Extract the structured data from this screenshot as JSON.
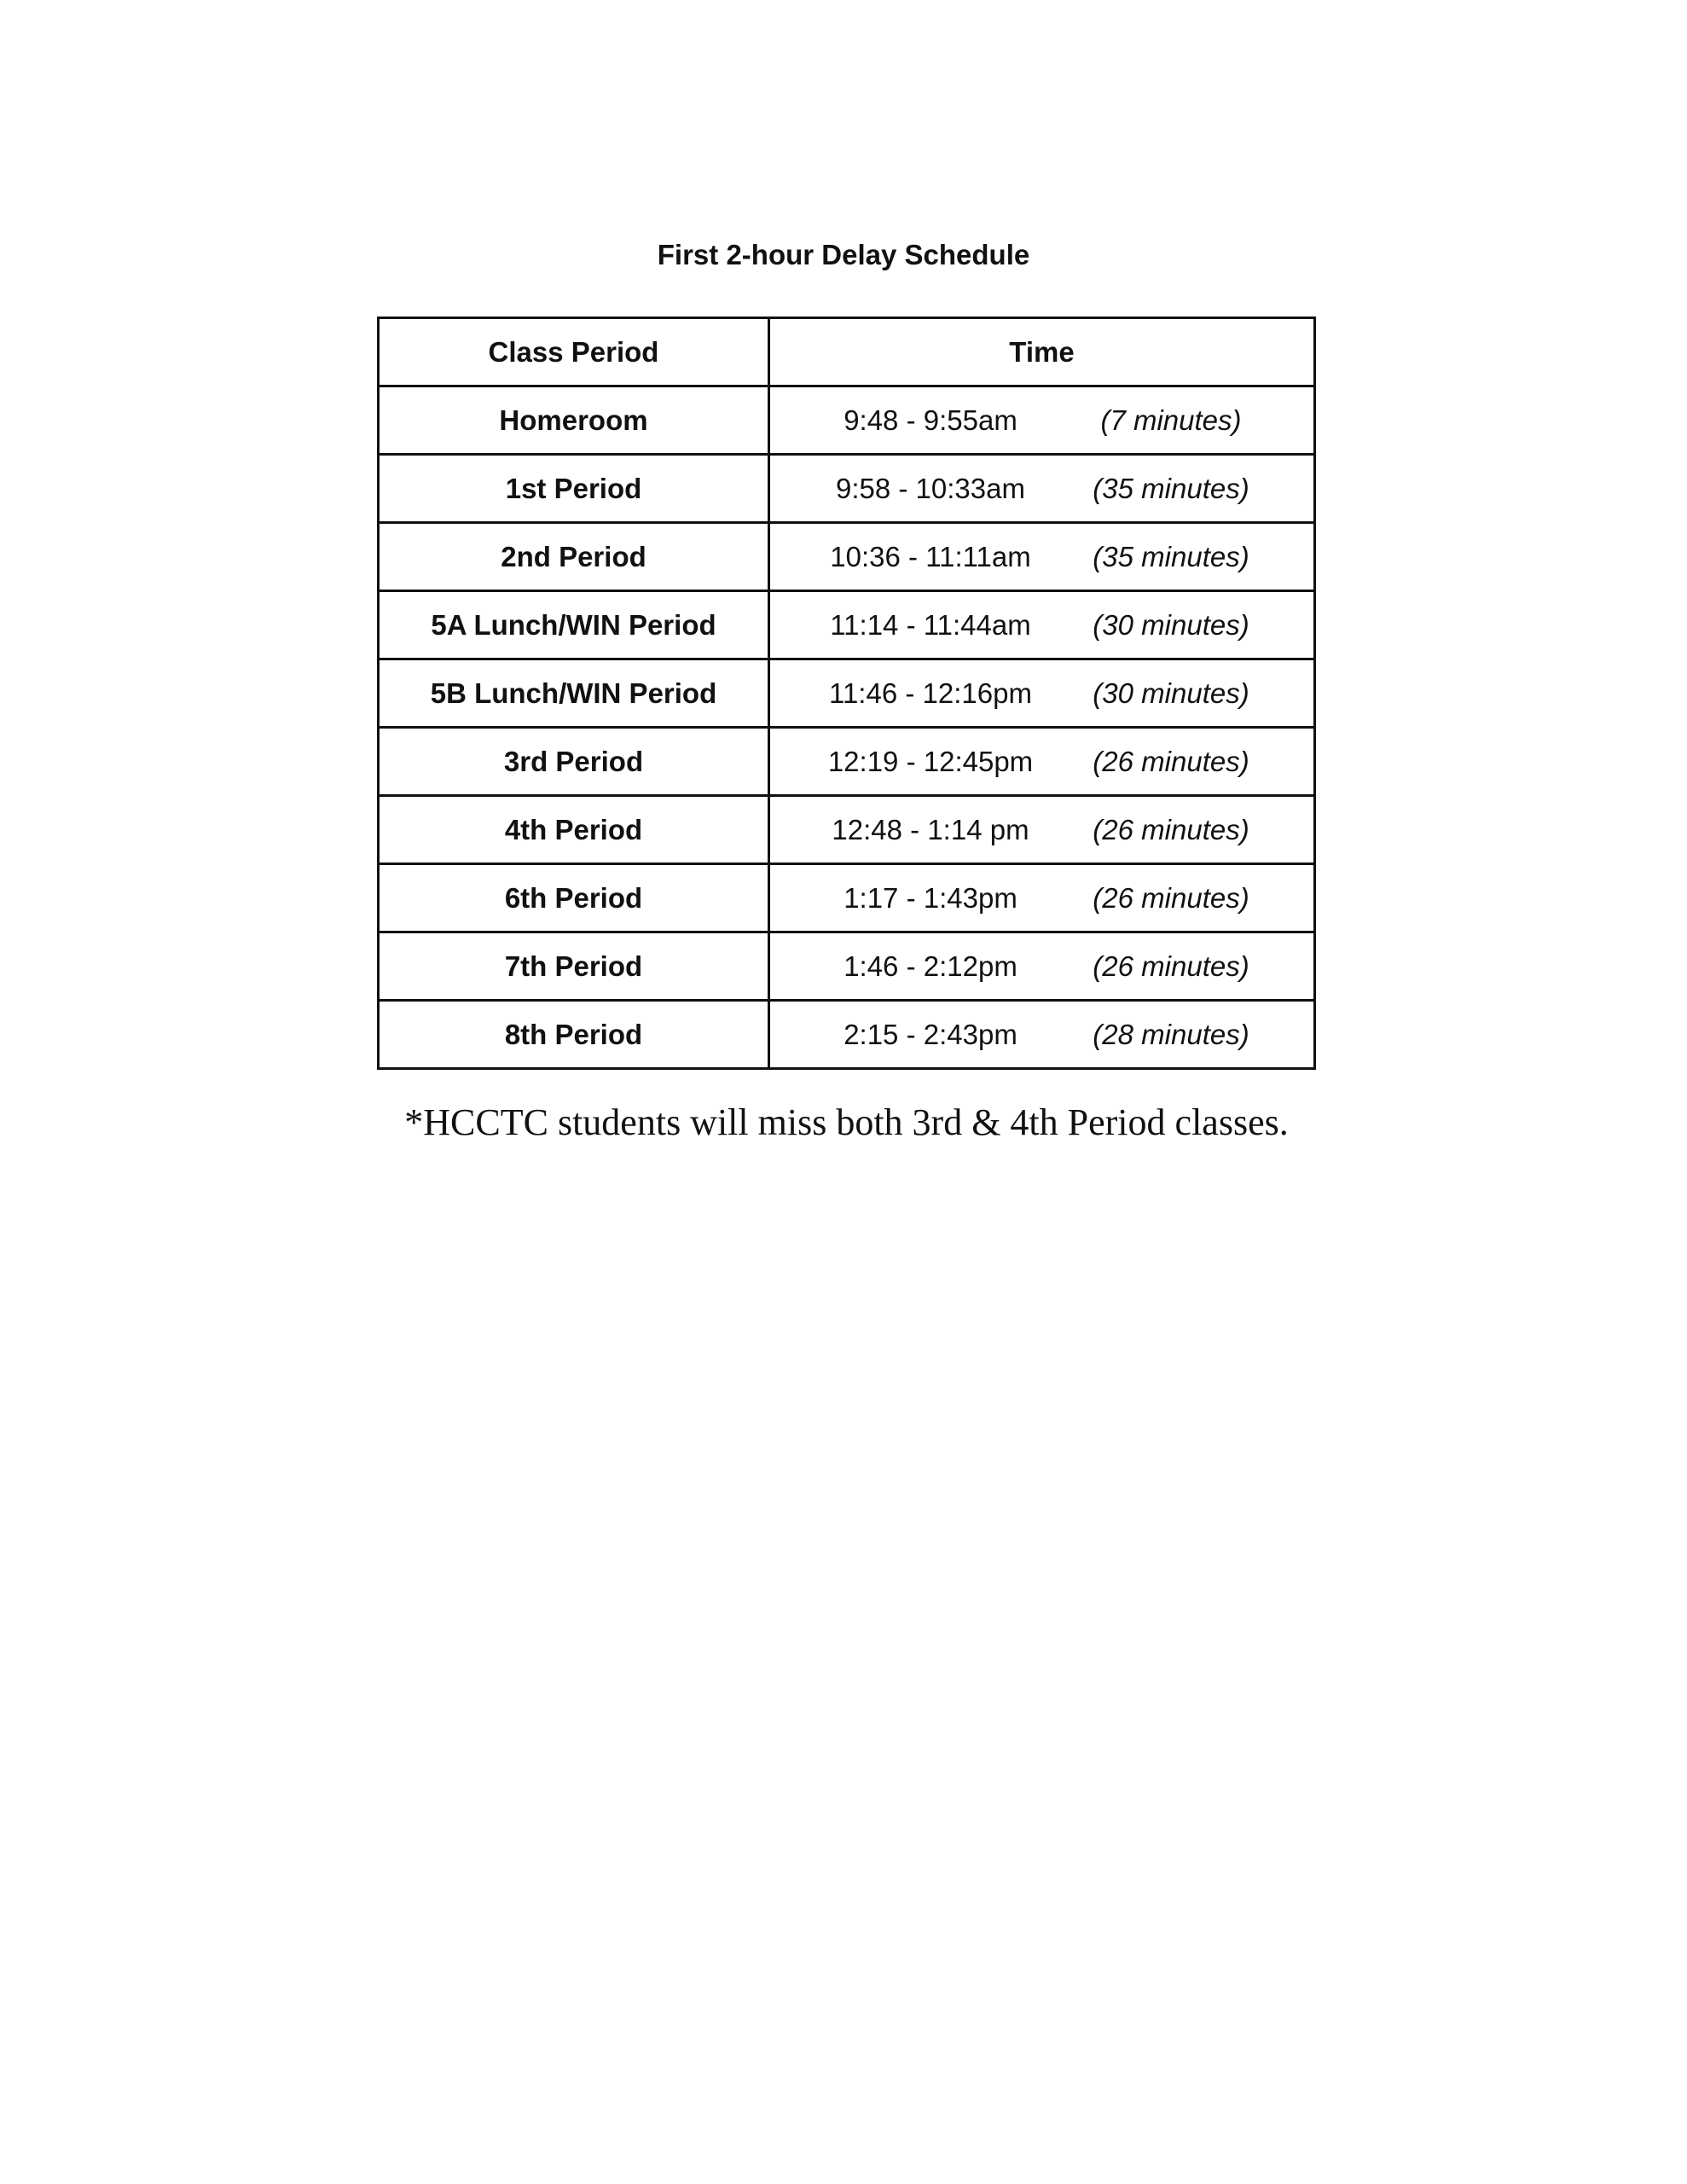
{
  "title": "First 2-hour Delay Schedule",
  "table": {
    "headers": [
      "Class Period",
      "Time"
    ],
    "rows": [
      {
        "period": "Homeroom",
        "time": "9:48 - 9:55am",
        "duration": "(7 minutes)"
      },
      {
        "period": "1st Period",
        "time": "9:58 - 10:33am",
        "duration": "(35 minutes)"
      },
      {
        "period": "2nd Period",
        "time": "10:36 - 11:11am",
        "duration": "(35 minutes)"
      },
      {
        "period": "5A Lunch/WIN Period",
        "time": "11:14 - 11:44am",
        "duration": "(30 minutes)"
      },
      {
        "period": "5B Lunch/WIN Period",
        "time": "11:46 - 12:16pm",
        "duration": "(30 minutes)"
      },
      {
        "period": "3rd Period",
        "time": "12:19  - 12:45pm",
        "duration": "(26 minutes)"
      },
      {
        "period": "4th Period",
        "time": "12:48 - 1:14 pm",
        "duration": "(26 minutes)"
      },
      {
        "period": "6th Period",
        "time": "1:17 - 1:43pm",
        "duration": "(26 minutes)"
      },
      {
        "period": "7th Period",
        "time": "1:46 - 2:12pm",
        "duration": "(26 minutes)"
      },
      {
        "period": "8th Period",
        "time": "2:15 - 2:43pm",
        "duration": "(28 minutes)"
      }
    ]
  },
  "footnote": "*HCCTC students will miss both 3rd & 4th Period classes."
}
